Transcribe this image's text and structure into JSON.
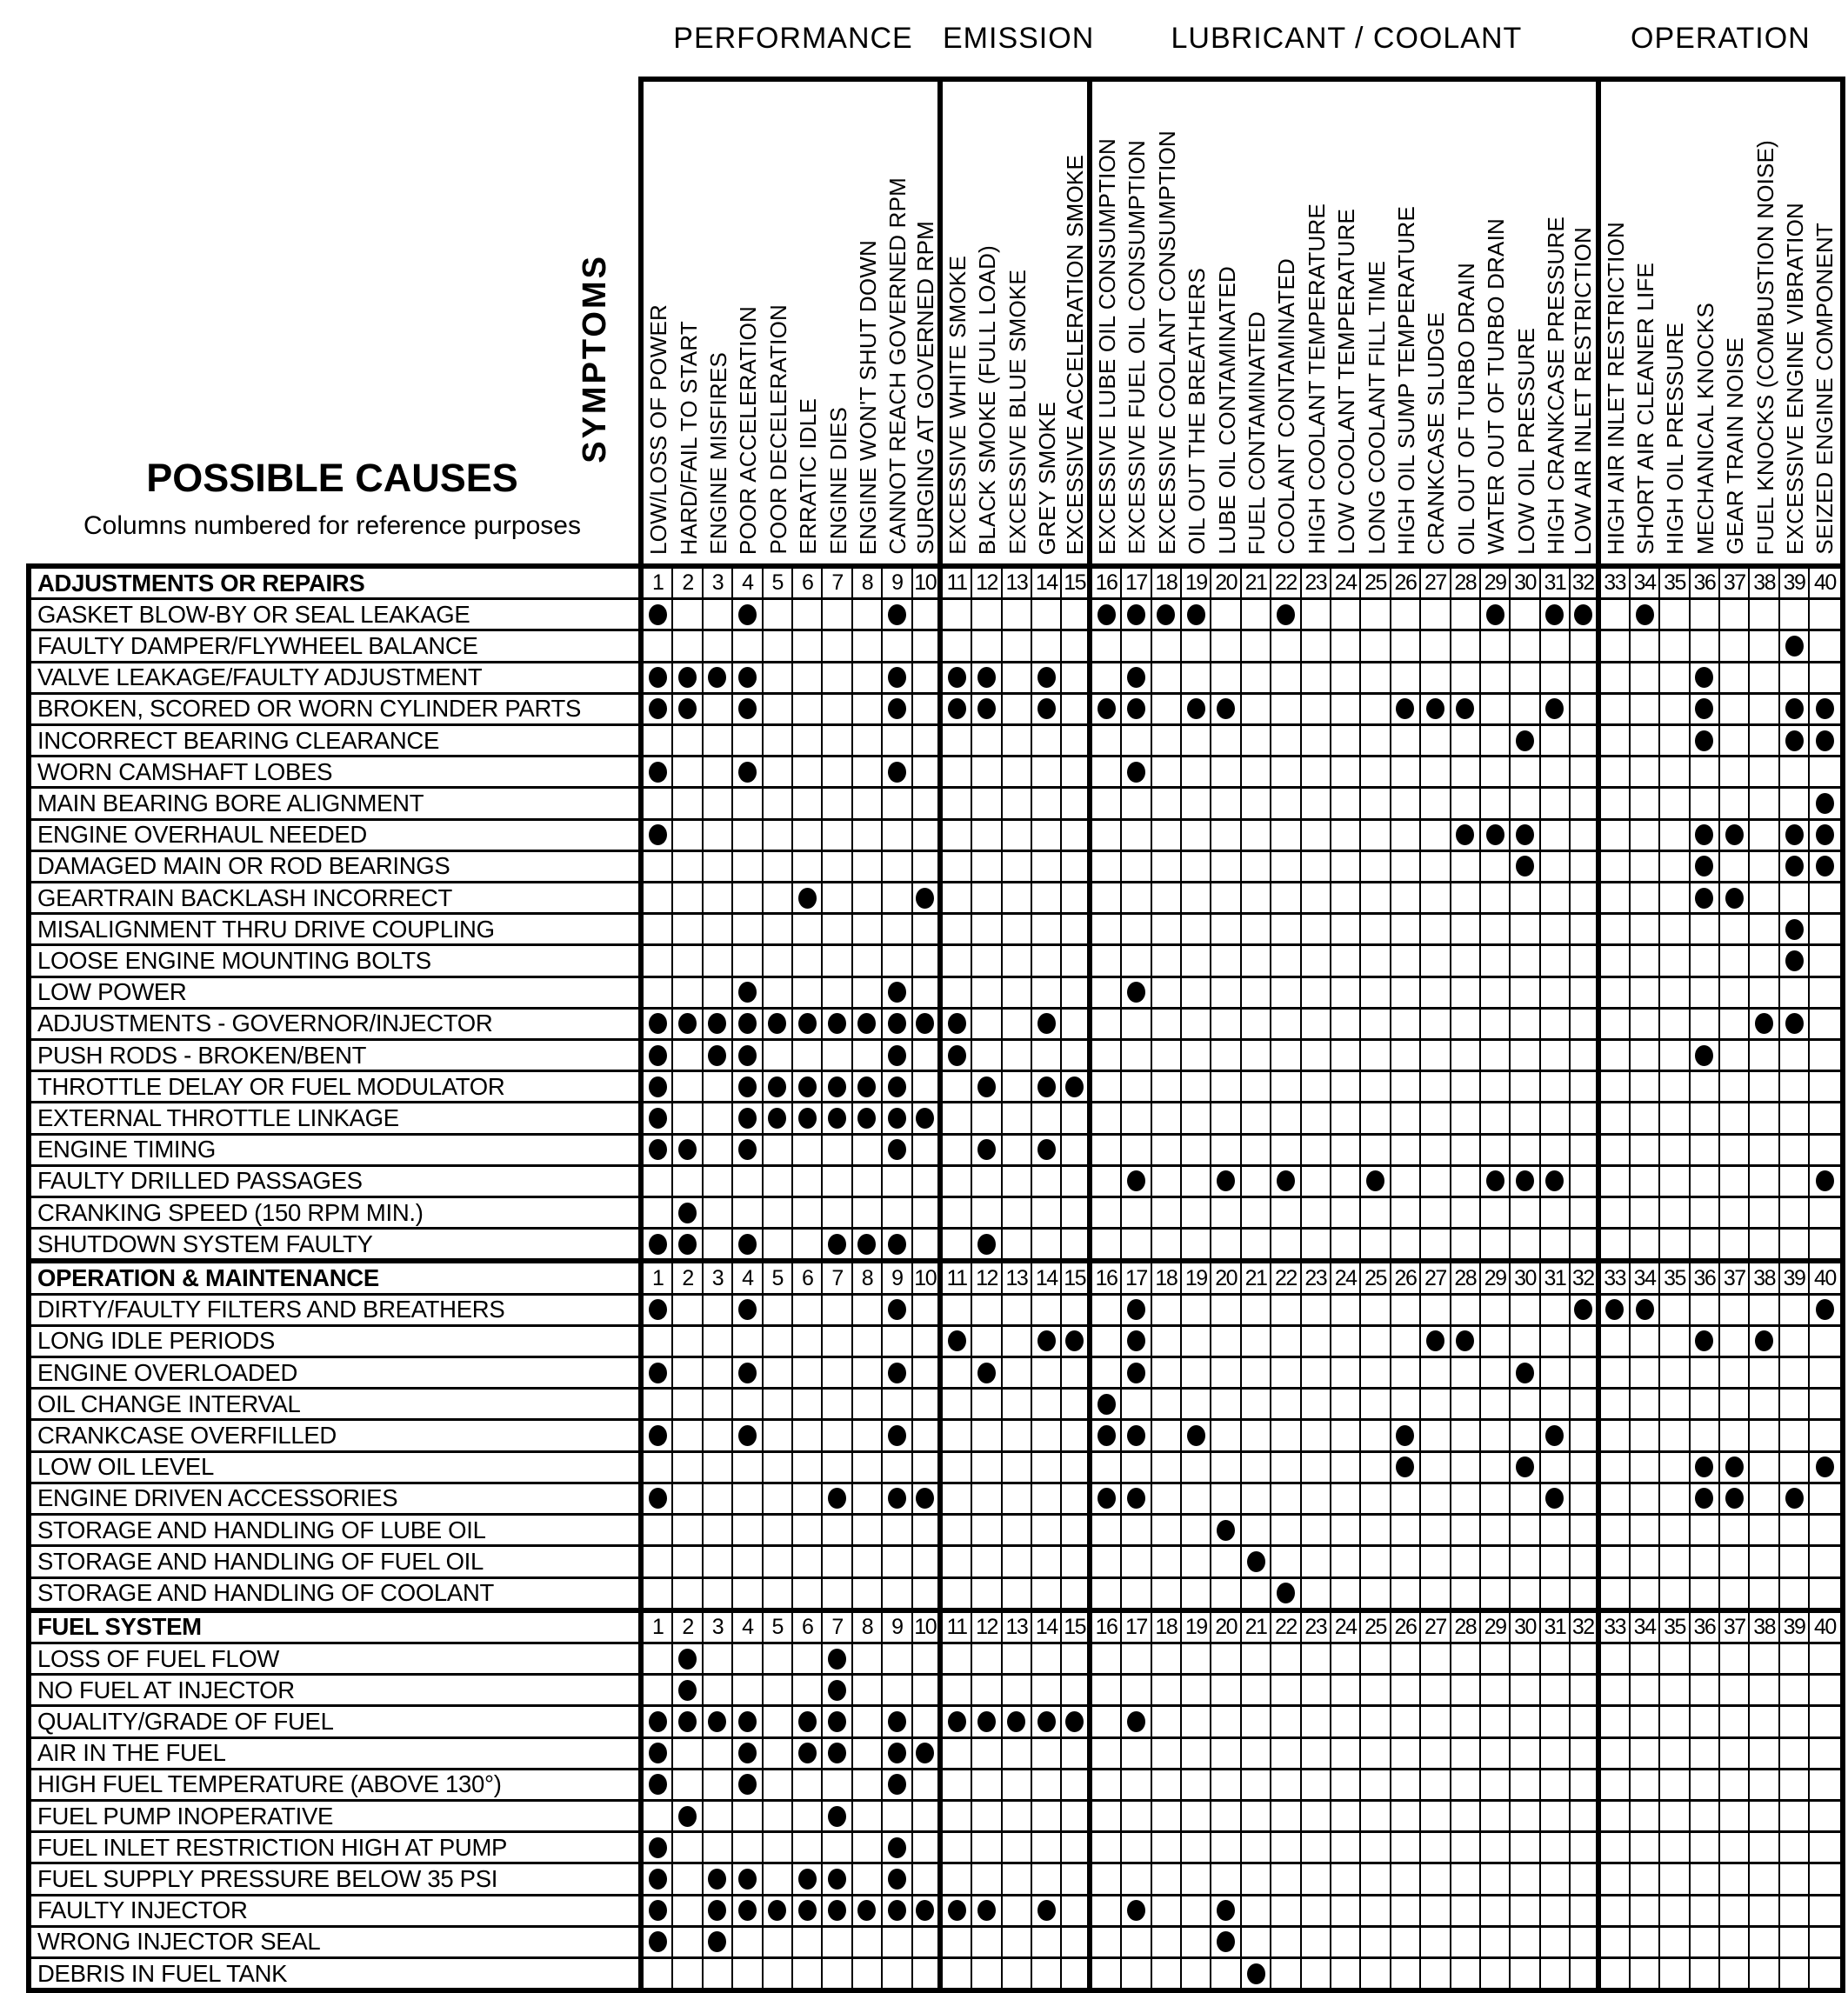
{
  "header": {
    "causes_title": "POSSIBLE CAUSES",
    "causes_subtitle": "Columns numbered for reference purposes",
    "symptoms_label": "SYMPTOMS"
  },
  "style": {
    "ink": "#000000",
    "paper": "#ffffff"
  },
  "column_groups": [
    {
      "label": "PERFORMANCE",
      "start": 1,
      "end": 10
    },
    {
      "label": "EMISSION",
      "start": 11,
      "end": 15
    },
    {
      "label": "LUBRICANT / COOLANT",
      "start": 16,
      "end": 32
    },
    {
      "label": "OPERATION",
      "start": 33,
      "end": 40
    }
  ],
  "group_separator_columns": [
    10,
    15,
    32
  ],
  "symptom_columns": [
    "LOW/LOSS OF POWER",
    "HARD/FAIL TO START",
    "ENGINE MISFIRES",
    "POOR ACCELERATION",
    "POOR DECELERATION",
    "ERRATIC IDLE",
    "ENGINE DIES",
    "ENGINE WON'T SHUT DOWN",
    "CANNOT REACH GOVERNED RPM",
    "SURGING AT GOVERNED RPM",
    "EXCESSIVE WHITE SMOKE",
    "BLACK SMOKE (FULL LOAD)",
    "EXCESSIVE BLUE SMOKE",
    "GREY SMOKE",
    "EXCESSIVE ACCELERATION SMOKE",
    "EXCESSIVE LUBE OIL CONSUMPTION",
    "EXCESSIVE FUEL OIL CONSUMPTION",
    "EXCESSIVE COOLANT CONSUMPTION",
    "OIL OUT THE BREATHERS",
    "LUBE OIL CONTAMINATED",
    "FUEL CONTAMINATED",
    "COOLANT CONTAMINATED",
    "HIGH COOLANT TEMPERATURE",
    "LOW COOLANT TEMPERATURE",
    "LONG COOLANT FILL TIME",
    "HIGH OIL SUMP TEMPERATURE",
    "CRANKCASE SLUDGE",
    "OIL OUT OF TURBO DRAIN",
    "WATER OUT OF TURBO DRAIN",
    "LOW OIL PRESSURE",
    "HIGH CRANKCASE PRESSURE",
    "LOW AIR INLET RESTRICTION",
    "HIGH AIR INLET RESTRICTION",
    "SHORT AIR CLEANER LIFE",
    "HIGH OIL PRESSURE",
    "MECHANICAL KNOCKS",
    "GEAR TRAIN NOISE",
    "FUEL KNOCKS (COMBUSTION NOISE)",
    "EXCESSIVE ENGINE VIBRATION",
    "SEIZED ENGINE COMPONENT"
  ],
  "cause_sections": [
    {
      "header": "ADJUSTMENTS OR REPAIRS",
      "rows": [
        {
          "label": "GASKET BLOW-BY OR SEAL LEAKAGE",
          "dots": [
            1,
            4,
            9,
            16,
            17,
            18,
            19,
            22,
            29,
            31,
            32,
            34
          ]
        },
        {
          "label": "FAULTY DAMPER/FLYWHEEL BALANCE",
          "dots": [
            39
          ]
        },
        {
          "label": "VALVE LEAKAGE/FAULTY ADJUSTMENT",
          "dots": [
            1,
            2,
            3,
            4,
            9,
            11,
            12,
            14,
            17,
            36
          ]
        },
        {
          "label": "BROKEN, SCORED OR WORN CYLINDER PARTS",
          "dots": [
            1,
            2,
            4,
            9,
            11,
            12,
            14,
            16,
            17,
            19,
            20,
            26,
            27,
            28,
            31,
            36,
            39,
            40
          ]
        },
        {
          "label": "INCORRECT BEARING CLEARANCE",
          "dots": [
            30,
            36,
            39,
            40
          ]
        },
        {
          "label": "WORN CAMSHAFT LOBES",
          "dots": [
            1,
            4,
            9,
            17
          ]
        },
        {
          "label": "MAIN BEARING BORE ALIGNMENT",
          "dots": [
            40
          ]
        },
        {
          "label": "ENGINE OVERHAUL NEEDED",
          "dots": [
            1,
            28,
            29,
            30,
            36,
            37,
            39,
            40
          ]
        },
        {
          "label": "DAMAGED MAIN OR ROD BEARINGS",
          "dots": [
            30,
            36,
            39,
            40
          ]
        },
        {
          "label": "GEARTRAIN BACKLASH INCORRECT",
          "dots": [
            6,
            10,
            36,
            37
          ]
        },
        {
          "label": "MISALIGNMENT THRU DRIVE COUPLING",
          "dots": [
            39
          ]
        },
        {
          "label": "LOOSE ENGINE MOUNTING BOLTS",
          "dots": [
            39
          ]
        },
        {
          "label": "LOW POWER",
          "dots": [
            4,
            9,
            17
          ]
        },
        {
          "label": "ADJUSTMENTS - GOVERNOR/INJECTOR",
          "dots": [
            1,
            2,
            3,
            4,
            5,
            6,
            7,
            8,
            9,
            10,
            11,
            14,
            38,
            39
          ]
        },
        {
          "label": "PUSH RODS - BROKEN/BENT",
          "dots": [
            1,
            3,
            4,
            9,
            11,
            36
          ]
        },
        {
          "label": "THROTTLE DELAY OR FUEL MODULATOR",
          "dots": [
            1,
            4,
            5,
            6,
            7,
            8,
            9,
            12,
            14,
            15
          ]
        },
        {
          "label": "EXTERNAL THROTTLE LINKAGE",
          "dots": [
            1,
            4,
            5,
            6,
            7,
            8,
            9,
            10
          ]
        },
        {
          "label": "ENGINE TIMING",
          "dots": [
            1,
            2,
            4,
            9,
            12,
            14
          ]
        },
        {
          "label": "FAULTY DRILLED PASSAGES",
          "dots": [
            17,
            20,
            22,
            25,
            29,
            30,
            31,
            40
          ]
        },
        {
          "label": "CRANKING SPEED (150 RPM MIN.)",
          "dots": [
            2
          ]
        },
        {
          "label": "SHUTDOWN SYSTEM FAULTY",
          "dots": [
            1,
            2,
            4,
            7,
            8,
            9,
            12
          ]
        }
      ]
    },
    {
      "header": "OPERATION & MAINTENANCE",
      "rows": [
        {
          "label": "DIRTY/FAULTY FILTERS AND BREATHERS",
          "dots": [
            1,
            4,
            9,
            17,
            32,
            33,
            34,
            40
          ]
        },
        {
          "label": "LONG IDLE PERIODS",
          "dots": [
            11,
            14,
            15,
            17,
            27,
            28,
            36,
            38
          ]
        },
        {
          "label": "ENGINE OVERLOADED",
          "dots": [
            1,
            4,
            9,
            12,
            17,
            30
          ]
        },
        {
          "label": "OIL CHANGE INTERVAL",
          "dots": [
            16
          ]
        },
        {
          "label": "CRANKCASE OVERFILLED",
          "dots": [
            1,
            4,
            9,
            16,
            17,
            19,
            26,
            31
          ]
        },
        {
          "label": "LOW OIL LEVEL",
          "dots": [
            26,
            30,
            36,
            37,
            40
          ]
        },
        {
          "label": "ENGINE DRIVEN ACCESSORIES",
          "dots": [
            1,
            7,
            9,
            10,
            16,
            17,
            31,
            36,
            37,
            39
          ]
        },
        {
          "label": "STORAGE AND HANDLING OF LUBE OIL",
          "dots": [
            20
          ]
        },
        {
          "label": "STORAGE AND HANDLING OF FUEL OIL",
          "dots": [
            21
          ]
        },
        {
          "label": "STORAGE AND HANDLING OF COOLANT",
          "dots": [
            22
          ]
        }
      ]
    },
    {
      "header": "FUEL SYSTEM",
      "rows": [
        {
          "label": "LOSS OF FUEL FLOW",
          "dots": [
            2,
            7
          ]
        },
        {
          "label": "NO FUEL AT INJECTOR",
          "dots": [
            2,
            7
          ]
        },
        {
          "label": "QUALITY/GRADE OF FUEL",
          "dots": [
            1,
            2,
            3,
            4,
            6,
            7,
            9,
            11,
            12,
            13,
            14,
            15,
            17
          ]
        },
        {
          "label": "AIR IN THE FUEL",
          "dots": [
            1,
            4,
            6,
            7,
            9,
            10
          ]
        },
        {
          "label": "HIGH FUEL TEMPERATURE (ABOVE 130°)",
          "dots": [
            1,
            4,
            9
          ]
        },
        {
          "label": "FUEL PUMP INOPERATIVE",
          "dots": [
            2,
            7
          ]
        },
        {
          "label": "FUEL INLET RESTRICTION HIGH AT PUMP",
          "dots": [
            1,
            9
          ]
        },
        {
          "label": "FUEL SUPPLY PRESSURE BELOW 35 PSI",
          "dots": [
            1,
            3,
            4,
            6,
            7,
            9
          ]
        },
        {
          "label": "FAULTY INJECTOR",
          "dots": [
            1,
            3,
            4,
            5,
            6,
            7,
            8,
            9,
            10,
            11,
            12,
            14,
            17,
            20
          ]
        },
        {
          "label": "WRONG INJECTOR SEAL",
          "dots": [
            1,
            3,
            20
          ]
        },
        {
          "label": "DEBRIS IN FUEL TANK",
          "dots": [
            21
          ]
        }
      ]
    }
  ]
}
